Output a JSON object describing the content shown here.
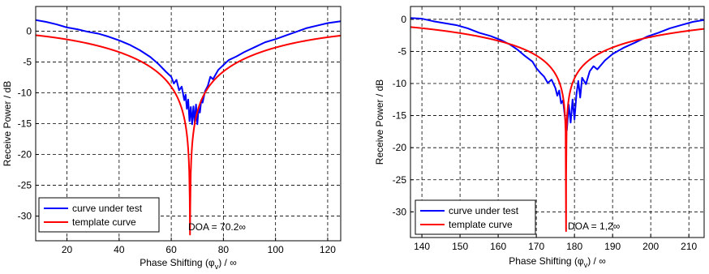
{
  "chart_data": [
    {
      "type": "line",
      "xlabel": "Phase Shifting (φ_v) / ∞",
      "xlabel_main": "Phase Shifting (φ",
      "xlabel_sub": "v",
      "xlabel_tail": ") / ∞",
      "ylabel": "Receive Power / dB",
      "xlim": [
        8,
        125
      ],
      "ylim": [
        -34,
        4
      ],
      "xticks": [
        20,
        40,
        60,
        80,
        100,
        120
      ],
      "yticks": [
        0,
        -5,
        -10,
        -15,
        -20,
        -25,
        -30
      ],
      "grid": true,
      "legend_placement": "bottom-left",
      "annotation": "DOA = 70.2∞",
      "series": [
        {
          "name": "curve under test",
          "color": "#0000ff",
          "points": [
            [
              8,
              1.8
            ],
            [
              12,
              1.5
            ],
            [
              16,
              1.1
            ],
            [
              20,
              0.6
            ],
            [
              24,
              0.3
            ],
            [
              28,
              -0.1
            ],
            [
              32,
              -0.4
            ],
            [
              36,
              -0.9
            ],
            [
              40,
              -1.5
            ],
            [
              44,
              -2.2
            ],
            [
              48,
              -3.1
            ],
            [
              52,
              -4.2
            ],
            [
              55,
              -5.3
            ],
            [
              58,
              -6.6
            ],
            [
              60,
              -7.4
            ],
            [
              61,
              -8.5
            ],
            [
              62,
              -7.9
            ],
            [
              63,
              -9.6
            ],
            [
              64,
              -9.0
            ],
            [
              65,
              -11.2
            ],
            [
              65.5,
              -10.3
            ],
            [
              66,
              -12.6
            ],
            [
              66.5,
              -11.1
            ],
            [
              67,
              -14.6
            ],
            [
              67.5,
              -12.3
            ],
            [
              68,
              -15.1
            ],
            [
              68.5,
              -12.2
            ],
            [
              69,
              -14.8
            ],
            [
              69.5,
              -11.9
            ],
            [
              70,
              -15.1
            ],
            [
              70.5,
              -12.4
            ],
            [
              71,
              -13.2
            ],
            [
              71.5,
              -11.2
            ],
            [
              72,
              -11.6
            ],
            [
              73,
              -9.7
            ],
            [
              74,
              -8.9
            ],
            [
              75,
              -7.4
            ],
            [
              76,
              -7.8
            ],
            [
              78,
              -6.3
            ],
            [
              80,
              -5.5
            ],
            [
              82,
              -4.7
            ],
            [
              85,
              -4.1
            ],
            [
              88,
              -3.4
            ],
            [
              92,
              -2.6
            ],
            [
              96,
              -1.8
            ],
            [
              100,
              -1.3
            ],
            [
              104,
              -0.7
            ],
            [
              108,
              -0.1
            ],
            [
              112,
              0.5
            ],
            [
              116,
              0.9
            ],
            [
              120,
              1.3
            ],
            [
              125,
              1.6
            ]
          ]
        },
        {
          "name": "template curve",
          "color": "#ff0000",
          "center": 67.2,
          "drop_scale": 10,
          "floor": -33
        }
      ]
    },
    {
      "type": "line",
      "xlabel": "Phase Shifting (φ_v) / ∞",
      "xlabel_main": "Phase Shifting (φ",
      "xlabel_sub": "v",
      "xlabel_tail": ") / ∞",
      "ylabel": "Receive Power / dB",
      "xlim": [
        137,
        214
      ],
      "ylim": [
        -34,
        2
      ],
      "xticks": [
        140,
        150,
        160,
        170,
        180,
        190,
        200,
        210
      ],
      "yticks": [
        0,
        -5,
        -10,
        -15,
        -20,
        -25,
        -30
      ],
      "grid": true,
      "legend_placement": "bottom-left",
      "annotation": "DOA = 1,2∞",
      "series": [
        {
          "name": "curve under test",
          "color": "#0000ff",
          "points": [
            [
              137,
              0.2
            ],
            [
              140,
              0.1
            ],
            [
              143,
              -0.3
            ],
            [
              146,
              -0.6
            ],
            [
              149,
              -0.9
            ],
            [
              152,
              -1.4
            ],
            [
              155,
              -2.1
            ],
            [
              158,
              -2.6
            ],
            [
              161,
              -3.3
            ],
            [
              163,
              -3.9
            ],
            [
              165,
              -4.7
            ],
            [
              167,
              -5.7
            ],
            [
              169,
              -6.6
            ],
            [
              170,
              -7.6
            ],
            [
              171,
              -8.3
            ],
            [
              172,
              -8.9
            ],
            [
              173,
              -9.9
            ],
            [
              174,
              -9.4
            ],
            [
              175,
              -10.7
            ],
            [
              175.5,
              -11.9
            ],
            [
              176,
              -11.1
            ],
            [
              176.5,
              -13.1
            ],
            [
              177,
              -12.6
            ],
            [
              177.5,
              -15.2
            ],
            [
              178,
              -17.3
            ],
            [
              178.5,
              -13.3
            ],
            [
              179,
              -16.1
            ],
            [
              179.5,
              -12.5
            ],
            [
              180,
              -15.6
            ],
            [
              180.5,
              -11.8
            ],
            [
              181,
              -9.6
            ],
            [
              181.5,
              -12.2
            ],
            [
              182,
              -9.1
            ],
            [
              183,
              -10.1
            ],
            [
              184,
              -8.1
            ],
            [
              185,
              -7.3
            ],
            [
              186,
              -7.8
            ],
            [
              188,
              -6.4
            ],
            [
              190,
              -5.4
            ],
            [
              193,
              -4.4
            ],
            [
              196,
              -3.6
            ],
            [
              199,
              -2.7
            ],
            [
              202,
              -2.1
            ],
            [
              205,
              -1.4
            ],
            [
              208,
              -0.9
            ],
            [
              211,
              -0.4
            ],
            [
              214,
              -0.1
            ]
          ]
        },
        {
          "name": "template curve",
          "color": "#ff0000",
          "center": 177.8,
          "drop_scale": 6.5,
          "floor": -33
        }
      ]
    }
  ]
}
